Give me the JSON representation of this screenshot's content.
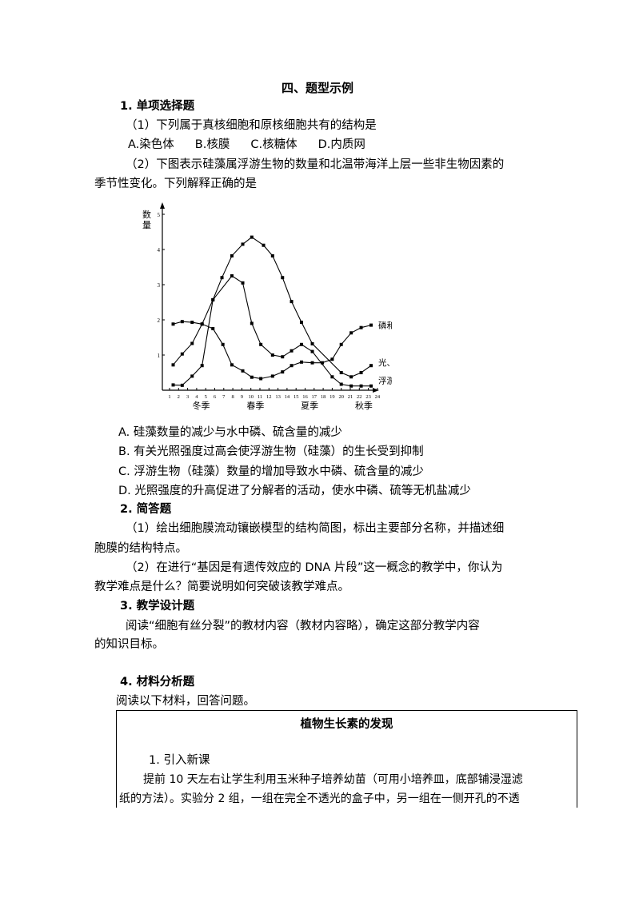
{
  "heading": "四、题型示例",
  "sections": {
    "s1": {
      "title": "1. 单项选择题",
      "q1": {
        "stem": "（1）下列属于真核细胞和原核细胞共有的结构是",
        "options": [
          "A.染色体",
          "B.核膜",
          "C.核糖体",
          "D.内质网"
        ]
      },
      "q2": {
        "stem_line1": "（2）下图表示硅藻属浮游生物的数量和北温带海洋上层一些非生物因素的",
        "stem_line2": "季节性变化。下列解释正确的是",
        "options": [
          "A. 硅藻数量的减少与水中磷、硫含量的减少",
          "B. 有关光照强度过高会使浮游生物（硅藻）的生长受到抑制",
          "C. 浮游生物（硅藻）数量的增加导致水中磷、硫含量的减少",
          "D. 光照强度的升高促进了分解者的活动，使水中磷、硫等无机盐减少"
        ]
      }
    },
    "s2": {
      "title": "2. 简答题",
      "q1_line1": "（1）绘出细胞膜流动镶嵌模型的结构简图，标出主要部分名称，并描述细",
      "q1_line2": "胞膜的结构特点。",
      "q2_line1": "（2）在进行“基因是有遗传效应的 DNA 片段”这一概念的教学中，你认为",
      "q2_line2": "教学难点是什么？简要说明如何突破该教学难点。"
    },
    "s3": {
      "title": "3. 教学设计题",
      "line1": "阅读“细胞有丝分裂”的教材内容（教材内容略），确定这部分教学内容",
      "line2": "的知识目标。"
    },
    "s4": {
      "title": "4. 材料分析题",
      "intro": "阅读以下材料，回答问题。",
      "box": {
        "title": "植物生长素的发现",
        "sub": "1. 引入新课",
        "line1": "提前 10 天左右让学生利用玉米种子培养幼苗（可用小培养皿，底部铺浸湿滤",
        "line2": "纸的方法）。实验分 2 组，一组在完全不透光的盒子中，另一组在一侧开孔的不透"
      }
    }
  },
  "chart_data": {
    "type": "line",
    "ylabel": "数量",
    "ylim": [
      0,
      5
    ],
    "yticks": [
      "1",
      "2",
      "3",
      "4",
      "5"
    ],
    "xlim": [
      0.3,
      24.5
    ],
    "xticks": [
      "1",
      "2",
      "3",
      "4",
      "5",
      "6",
      "7",
      "8",
      "9",
      "10",
      "11",
      "12",
      "13",
      "14",
      "15",
      "16",
      "17",
      "18",
      "19",
      "20",
      "21",
      "22",
      "23",
      "24"
    ],
    "season_labels": [
      "冬季",
      "春季",
      "夏季",
      "秋季"
    ],
    "grid": false,
    "series": [
      {
        "name": "磷和硫",
        "x": [
          1.4,
          2.4,
          3.5,
          4.6,
          5.8,
          6.9,
          7.9,
          9.1,
          10.1,
          11.1,
          12.4,
          13.5,
          14.5,
          15.6,
          16.8,
          17.9,
          19,
          20,
          21.1,
          22.2,
          23.3
        ],
        "y": [
          1.88,
          1.95,
          1.93,
          1.88,
          1.75,
          1.3,
          0.72,
          0.55,
          0.37,
          0.33,
          0.4,
          0.52,
          0.7,
          0.8,
          0.78,
          0.78,
          0.88,
          1.3,
          1.63,
          1.78,
          1.85
        ]
      },
      {
        "name": "光、温度",
        "x": [
          1.4,
          2.4,
          3.5,
          4.6,
          5.8,
          6.8,
          7.9,
          9.1,
          10.1,
          11.4,
          12.4,
          13.5,
          14.5,
          15.6,
          16.8,
          20,
          21.1,
          22.2,
          23.3
        ],
        "y": [
          0.72,
          1.03,
          1.33,
          1.88,
          2.57,
          3.2,
          3.82,
          4.15,
          4.35,
          4.12,
          3.82,
          3.2,
          2.52,
          1.93,
          1.32,
          0.5,
          0.38,
          0.5,
          0.7
        ]
      },
      {
        "name": "浮游生物（硅藻）",
        "x": [
          1.4,
          2.4,
          3.5,
          4.6,
          5.8,
          7.9,
          9.1,
          10.1,
          11.1,
          12.4,
          13.5,
          14.5,
          15.6,
          16.8,
          19,
          20,
          21.1,
          22.2,
          23.3
        ],
        "y": [
          0.15,
          0.14,
          0.4,
          0.7,
          2.57,
          3.25,
          3.05,
          1.9,
          1.3,
          1.0,
          0.95,
          1.12,
          1.3,
          1.1,
          0.38,
          0.17,
          0.12,
          0.12,
          0.12
        ]
      }
    ]
  }
}
